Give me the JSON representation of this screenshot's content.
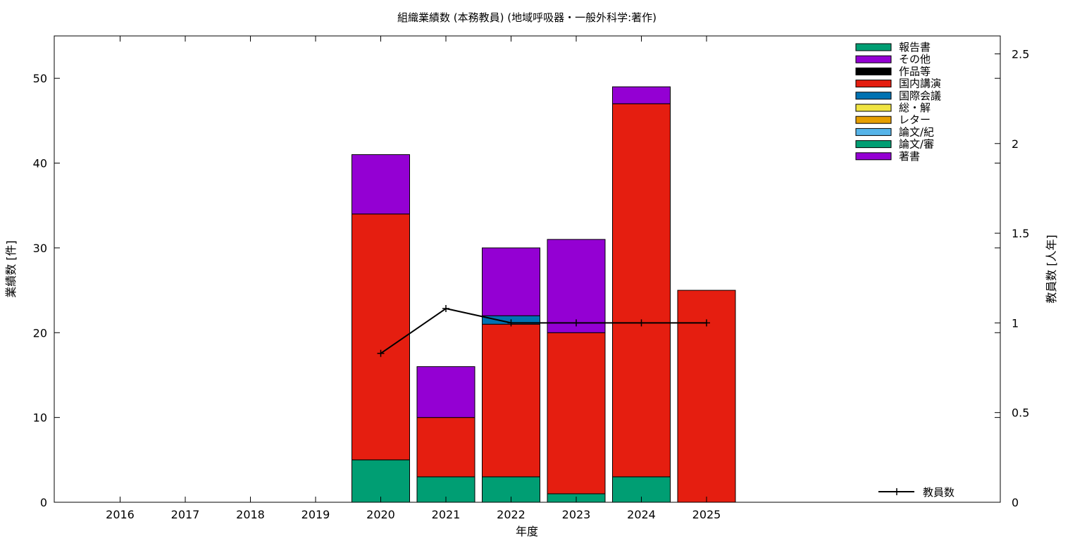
{
  "chart_data": {
    "type": "bar",
    "title": "組織業績数 (本務教員) (地域呼吸器・一般外科学:著作)",
    "xlabel": "年度",
    "ylabel": "業績数 [件]",
    "y2label": "教員数 [人年]",
    "categories": [
      "2016",
      "2017",
      "2018",
      "2019",
      "2020",
      "2021",
      "2022",
      "2023",
      "2024",
      "2025"
    ],
    "ylim": [
      0,
      55
    ],
    "yticks": [
      "0",
      "10",
      "20",
      "30",
      "40",
      "50"
    ],
    "y2lim": [
      0,
      2.6
    ],
    "y2ticks": [
      "0",
      "0.5",
      "1",
      "1.5",
      "2",
      "2.5"
    ],
    "legend_position": "top-right",
    "series": [
      {
        "name": "報告書",
        "color": "#009e73",
        "values": [
          0,
          0,
          0,
          0,
          5,
          3,
          3,
          1,
          3,
          0
        ]
      },
      {
        "name": "その他",
        "color": "#9400d3",
        "values": [
          0,
          0,
          0,
          0,
          0,
          0,
          0,
          0,
          0,
          0
        ]
      },
      {
        "name": "作品等",
        "color": "#000000",
        "values": [
          0,
          0,
          0,
          0,
          0,
          0,
          0,
          0,
          0,
          0
        ]
      },
      {
        "name": "国内講演",
        "color": "#e51e10",
        "values": [
          0,
          0,
          0,
          0,
          29,
          7,
          18,
          19,
          44,
          25
        ]
      },
      {
        "name": "国際会議",
        "color": "#0072b2",
        "values": [
          0,
          0,
          0,
          0,
          0,
          0,
          1,
          0,
          0,
          0
        ]
      },
      {
        "name": "総・解",
        "color": "#f0e442",
        "values": [
          0,
          0,
          0,
          0,
          0,
          0,
          0,
          0,
          0,
          0
        ]
      },
      {
        "name": "レター",
        "color": "#e69f00",
        "values": [
          0,
          0,
          0,
          0,
          0,
          0,
          0,
          0,
          0,
          0
        ]
      },
      {
        "name": "論文/紀",
        "color": "#56b4e9",
        "values": [
          0,
          0,
          0,
          0,
          0,
          0,
          0,
          0,
          0,
          0
        ]
      },
      {
        "name": "論文/審",
        "color": "#009e73",
        "values": [
          0,
          0,
          0,
          0,
          0,
          0,
          0,
          0,
          0,
          0
        ]
      },
      {
        "name": "著書",
        "color": "#9400d3",
        "values": [
          0,
          0,
          0,
          0,
          7,
          6,
          8,
          11,
          2,
          0
        ]
      }
    ],
    "line_series": {
      "name": "教員数",
      "color": "#000000",
      "axis": "y2",
      "x": [
        "2020",
        "2021",
        "2022",
        "2023",
        "2024",
        "2025"
      ],
      "values": [
        0.83,
        1.08,
        1.0,
        1.0,
        1.0,
        1.0
      ]
    }
  }
}
